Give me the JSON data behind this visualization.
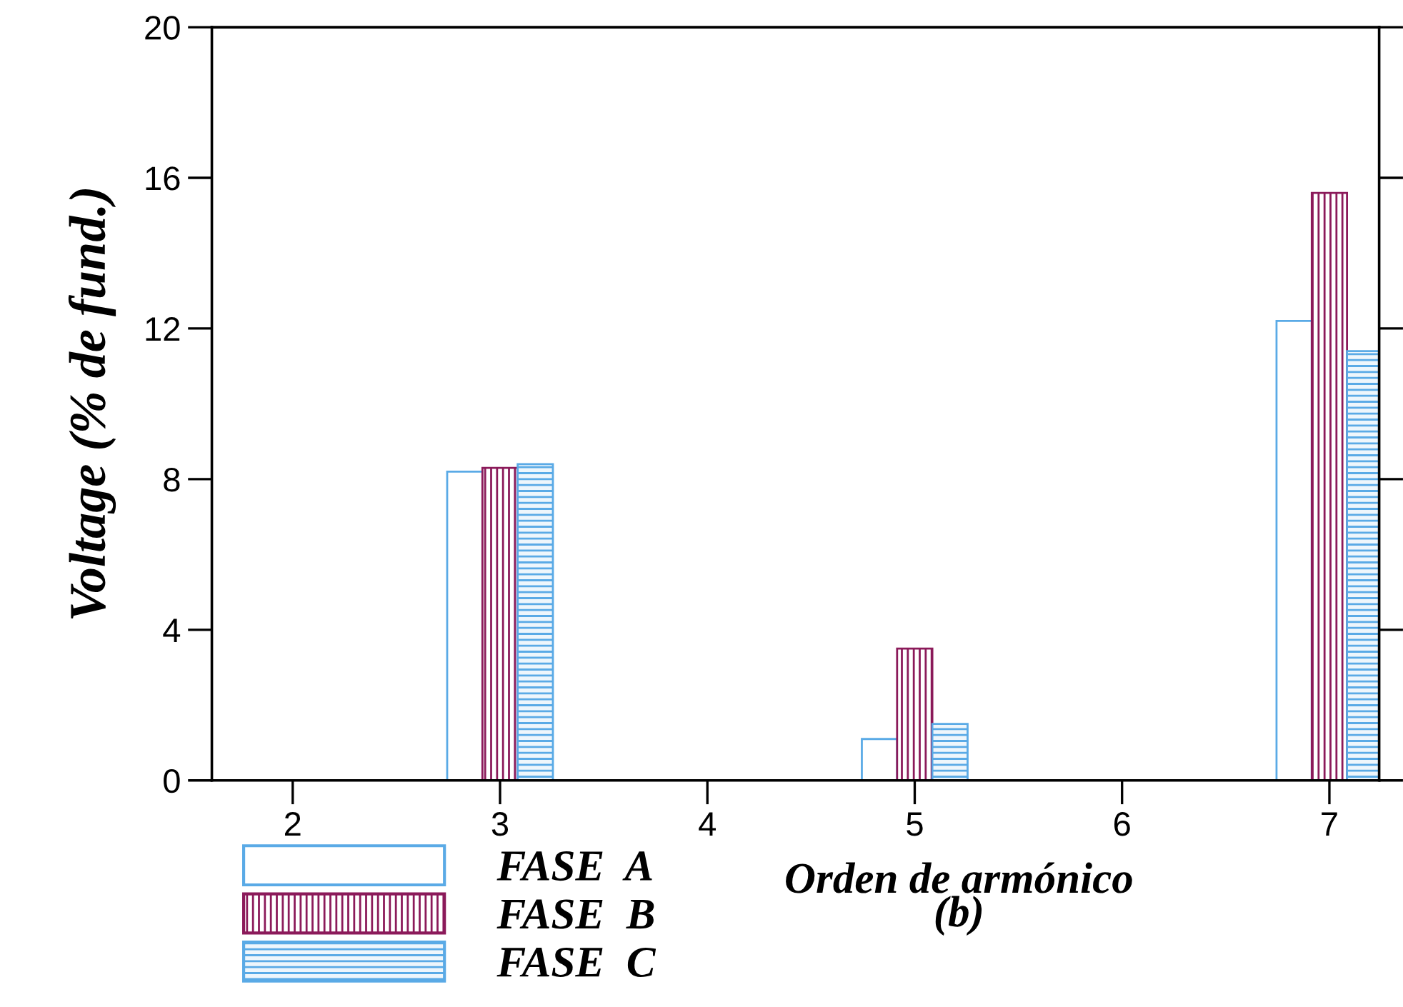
{
  "chart_data": {
    "type": "bar",
    "xlabel": "Orden de armónico\n(b)",
    "ylabel": "Voltage (% de fund.)",
    "categories": [
      "2",
      "3",
      "4",
      "5",
      "6",
      "7"
    ],
    "series": [
      {
        "name": "FASE  A",
        "color": "#5aaae6",
        "values": [
          null,
          8.2,
          null,
          1.1,
          null,
          12.2
        ]
      },
      {
        "name": "FASE  B",
        "color": "#8b1a5a",
        "values": [
          null,
          8.3,
          null,
          3.5,
          null,
          15.6
        ]
      },
      {
        "name": "FASE  C",
        "color": "#5aaae6",
        "values": [
          null,
          8.4,
          null,
          1.5,
          null,
          11.4
        ]
      }
    ],
    "ylim": [
      0,
      20
    ],
    "yticks": [
      0,
      4,
      8,
      12,
      16,
      20
    ],
    "grid": false,
    "legend": "bottom left"
  }
}
